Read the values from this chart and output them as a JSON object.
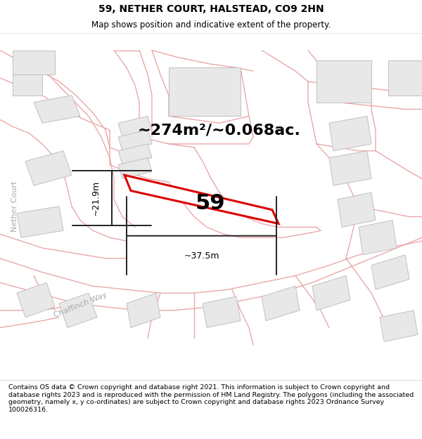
{
  "title": "59, NETHER COURT, HALSTEAD, CO9 2HN",
  "subtitle": "Map shows position and indicative extent of the property.",
  "footer": "Contains OS data © Crown copyright and database right 2021. This information is subject to Crown copyright and database rights 2023 and is reproduced with the permission of HM Land Registry. The polygons (including the associated geometry, namely x, y co-ordinates) are subject to Crown copyright and database rights 2023 Ordnance Survey 100026316.",
  "background_color": "#ffffff",
  "map_bg": "#ffffff",
  "area_label": "~274m²/~0.068ac.",
  "plot_number": "59",
  "dim_width": "~37.5m",
  "dim_height": "~21.9m",
  "road_color": "#e8a0a0",
  "building_fill": "#e8e8e8",
  "building_stroke": "#c0c0c0",
  "plot_fill": "#ffffff",
  "plot_stroke": "#dd0000",
  "dim_color": "#222222",
  "street_label_color": "#aaaaaa",
  "title_fontsize": 10,
  "subtitle_fontsize": 8.5,
  "area_fontsize": 16,
  "plot_label_fontsize": 22,
  "dim_fontsize": 9,
  "footer_fontsize": 6.8
}
